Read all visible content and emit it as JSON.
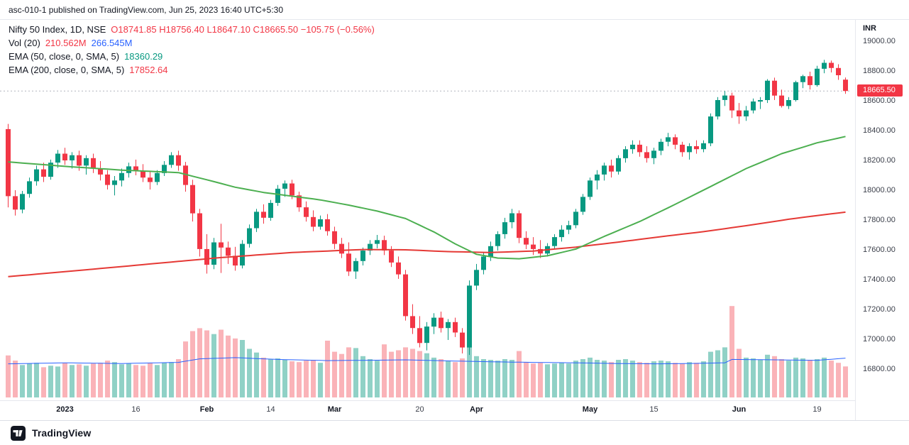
{
  "header": {
    "publish_text": "asc-010-1 published on TradingView.com, Jun 25, 2023 16:40 UTC+5:30"
  },
  "legend": {
    "symbol": "Nifty 50 Index, 1D, NSE",
    "ohlc_text": "O18741.85  H18756.40  L18647.10  C18665.50  −105.75 (−0.56%)",
    "vol_label": "Vol (20)",
    "vol_current": "210.562M",
    "vol_ma": "266.545M",
    "ema50_label": "EMA (50, close, 0, SMA, 5)",
    "ema50_value": "18360.29",
    "ema200_label": "EMA (200, close, 0, SMA, 5)",
    "ema200_value": "17852.64"
  },
  "price_axis": {
    "currency": "INR",
    "ticks": [
      "19000.00",
      "18800.00",
      "18600.00",
      "18400.00",
      "18200.00",
      "18000.00",
      "17800.00",
      "17600.00",
      "17400.00",
      "17200.00",
      "17000.00",
      "16800.00"
    ],
    "last_price_label": "18665.50"
  },
  "time_axis": {
    "ticks": [
      {
        "label": "2023",
        "index": 8,
        "major": true
      },
      {
        "label": "16",
        "index": 18,
        "major": false
      },
      {
        "label": "Feb",
        "index": 28,
        "major": true
      },
      {
        "label": "14",
        "index": 37,
        "major": false
      },
      {
        "label": "Mar",
        "index": 46,
        "major": true
      },
      {
        "label": "20",
        "index": 58,
        "major": false
      },
      {
        "label": "Apr",
        "index": 66,
        "major": true
      },
      {
        "label": "May",
        "index": 82,
        "major": true
      },
      {
        "label": "15",
        "index": 91,
        "major": false
      },
      {
        "label": "Jun",
        "index": 103,
        "major": true
      },
      {
        "label": "19",
        "index": 114,
        "major": false
      }
    ]
  },
  "footer": {
    "brand": "TradingView"
  },
  "chart_data": {
    "type": "candlestick",
    "title": "Nifty 50 Index, 1D, NSE",
    "subtitle": "Daily candles with Volume(20), EMA 50 and EMA 200 overlays",
    "y_axis": {
      "min": 16800,
      "max": 19000,
      "tick_step": 200,
      "currency": "INR"
    },
    "volume_axis_max": 650,
    "last_price": 18665.5,
    "last_change": -105.75,
    "last_change_pct": -0.56,
    "last_ohlc": {
      "o": 18741.85,
      "h": 18756.4,
      "l": 18647.1,
      "c": 18665.5
    },
    "ema50_last": 18360.29,
    "ema200_last": 17852.64,
    "vol_last_millions": 210.562,
    "vol_ma_last_millions": 266.545,
    "candles_format": [
      "open",
      "high",
      "low",
      "close",
      "volume_millions"
    ],
    "candles": [
      [
        18410,
        18445,
        17885,
        17960,
        285
      ],
      [
        17960,
        18000,
        17830,
        17870,
        250
      ],
      [
        17870,
        17995,
        17845,
        17975,
        220
      ],
      [
        17975,
        18085,
        17950,
        18060,
        230
      ],
      [
        18060,
        18165,
        18030,
        18140,
        235
      ],
      [
        18140,
        18185,
        18055,
        18090,
        205
      ],
      [
        18090,
        18205,
        18070,
        18185,
        215
      ],
      [
        18185,
        18270,
        18150,
        18245,
        210
      ],
      [
        18245,
        18285,
        18170,
        18200,
        235
      ],
      [
        18200,
        18255,
        18145,
        18235,
        220
      ],
      [
        18235,
        18265,
        18130,
        18165,
        225
      ],
      [
        18165,
        18235,
        18105,
        18215,
        215
      ],
      [
        18215,
        18245,
        18115,
        18145,
        230
      ],
      [
        18145,
        18195,
        18065,
        18105,
        235
      ],
      [
        18105,
        18135,
        18005,
        18035,
        250
      ],
      [
        18035,
        18095,
        17965,
        18065,
        240
      ],
      [
        18065,
        18145,
        18025,
        18115,
        225
      ],
      [
        18115,
        18185,
        18085,
        18160,
        230
      ],
      [
        18160,
        18205,
        18100,
        18130,
        220
      ],
      [
        18130,
        18175,
        18055,
        18085,
        215
      ],
      [
        18085,
        18125,
        18005,
        18055,
        235
      ],
      [
        18055,
        18135,
        18035,
        18115,
        220
      ],
      [
        18115,
        18195,
        18095,
        18170,
        235
      ],
      [
        18170,
        18255,
        18150,
        18235,
        240
      ],
      [
        18235,
        18265,
        18130,
        18165,
        260
      ],
      [
        18165,
        18190,
        17990,
        18035,
        380
      ],
      [
        18035,
        18070,
        17790,
        17845,
        450
      ],
      [
        17845,
        17875,
        17555,
        17605,
        470
      ],
      [
        17605,
        17705,
        17440,
        17500,
        455
      ],
      [
        17500,
        17680,
        17470,
        17650,
        430
      ],
      [
        17650,
        17775,
        17445,
        17615,
        460
      ],
      [
        17615,
        17655,
        17505,
        17560,
        420
      ],
      [
        17560,
        17620,
        17460,
        17495,
        400
      ],
      [
        17495,
        17665,
        17475,
        17640,
        390
      ],
      [
        17640,
        17770,
        17615,
        17745,
        330
      ],
      [
        17745,
        17875,
        17720,
        17855,
        305
      ],
      [
        17855,
        17905,
        17775,
        17815,
        270
      ],
      [
        17815,
        17935,
        17795,
        17915,
        260
      ],
      [
        17915,
        18035,
        17895,
        18010,
        265
      ],
      [
        18010,
        18065,
        17955,
        18045,
        255
      ],
      [
        18045,
        18070,
        17940,
        17965,
        245
      ],
      [
        17965,
        17990,
        17855,
        17885,
        240
      ],
      [
        17885,
        17925,
        17790,
        17820,
        250
      ],
      [
        17820,
        17865,
        17725,
        17755,
        255
      ],
      [
        17755,
        17830,
        17735,
        17805,
        235
      ],
      [
        17805,
        17840,
        17695,
        17725,
        385
      ],
      [
        17725,
        17755,
        17605,
        17640,
        310
      ],
      [
        17640,
        17680,
        17545,
        17575,
        295
      ],
      [
        17575,
        17650,
        17425,
        17455,
        340
      ],
      [
        17455,
        17545,
        17405,
        17525,
        335
      ],
      [
        17525,
        17615,
        17495,
        17595,
        280
      ],
      [
        17595,
        17665,
        17565,
        17640,
        260
      ],
      [
        17640,
        17700,
        17610,
        17665,
        250
      ],
      [
        17665,
        17695,
        17565,
        17595,
        360
      ],
      [
        17595,
        17625,
        17485,
        17515,
        310
      ],
      [
        17515,
        17555,
        17405,
        17435,
        320
      ],
      [
        17435,
        17465,
        17125,
        17155,
        340
      ],
      [
        17155,
        17235,
        17035,
        17075,
        330
      ],
      [
        17075,
        17155,
        16945,
        16975,
        315
      ],
      [
        16975,
        17115,
        16925,
        17085,
        300
      ],
      [
        17085,
        17175,
        17035,
        17145,
        270
      ],
      [
        17145,
        17185,
        17045,
        17075,
        260
      ],
      [
        17075,
        17135,
        16995,
        17115,
        250
      ],
      [
        17115,
        17145,
        17015,
        17045,
        240
      ],
      [
        17045,
        17075,
        16905,
        16945,
        265
      ],
      [
        16945,
        17395,
        16895,
        17360,
        340
      ],
      [
        17360,
        17505,
        17330,
        17465,
        280
      ],
      [
        17465,
        17585,
        17435,
        17555,
        260
      ],
      [
        17555,
        17655,
        17525,
        17625,
        255
      ],
      [
        17625,
        17725,
        17595,
        17705,
        250
      ],
      [
        17705,
        17815,
        17675,
        17785,
        260
      ],
      [
        17785,
        17875,
        17745,
        17845,
        255
      ],
      [
        17845,
        17865,
        17645,
        17680,
        315
      ],
      [
        17680,
        17725,
        17605,
        17635,
        240
      ],
      [
        17635,
        17685,
        17565,
        17605,
        230
      ],
      [
        17605,
        17665,
        17545,
        17575,
        235
      ],
      [
        17575,
        17645,
        17555,
        17625,
        225
      ],
      [
        17625,
        17705,
        17605,
        17685,
        230
      ],
      [
        17685,
        17765,
        17655,
        17735,
        235
      ],
      [
        17735,
        17795,
        17705,
        17765,
        230
      ],
      [
        17765,
        17875,
        17745,
        17855,
        250
      ],
      [
        17855,
        17975,
        17835,
        17955,
        260
      ],
      [
        17955,
        18085,
        17935,
        18065,
        270
      ],
      [
        18065,
        18135,
        18005,
        18105,
        255
      ],
      [
        18105,
        18185,
        18065,
        18165,
        250
      ],
      [
        18165,
        18205,
        18085,
        18125,
        240
      ],
      [
        18125,
        18235,
        18105,
        18215,
        255
      ],
      [
        18215,
        18295,
        18185,
        18275,
        260
      ],
      [
        18275,
        18335,
        18245,
        18305,
        250
      ],
      [
        18305,
        18335,
        18225,
        18255,
        240
      ],
      [
        18255,
        18295,
        18185,
        18215,
        235
      ],
      [
        18215,
        18285,
        18175,
        18265,
        245
      ],
      [
        18265,
        18345,
        18235,
        18325,
        250
      ],
      [
        18325,
        18385,
        18295,
        18355,
        245
      ],
      [
        18355,
        18375,
        18275,
        18305,
        235
      ],
      [
        18305,
        18325,
        18225,
        18255,
        230
      ],
      [
        18255,
        18315,
        18205,
        18295,
        240
      ],
      [
        18295,
        18335,
        18245,
        18275,
        235
      ],
      [
        18275,
        18335,
        18255,
        18315,
        245
      ],
      [
        18315,
        18515,
        18295,
        18495,
        310
      ],
      [
        18495,
        18625,
        18475,
        18605,
        320
      ],
      [
        18605,
        18665,
        18565,
        18635,
        340
      ],
      [
        18635,
        18655,
        18485,
        18535,
        620
      ],
      [
        18535,
        18585,
        18445,
        18495,
        330
      ],
      [
        18495,
        18565,
        18465,
        18535,
        270
      ],
      [
        18535,
        18615,
        18515,
        18595,
        265
      ],
      [
        18595,
        18625,
        18545,
        18605,
        255
      ],
      [
        18605,
        18745,
        18585,
        18735,
        290
      ],
      [
        18735,
        18755,
        18605,
        18635,
        280
      ],
      [
        18635,
        18675,
        18555,
        18565,
        260
      ],
      [
        18565,
        18625,
        18545,
        18605,
        250
      ],
      [
        18605,
        18735,
        18595,
        18725,
        270
      ],
      [
        18725,
        18775,
        18685,
        18765,
        265
      ],
      [
        18765,
        18795,
        18675,
        18705,
        255
      ],
      [
        18705,
        18835,
        18695,
        18815,
        260
      ],
      [
        18815,
        18875,
        18785,
        18855,
        270
      ],
      [
        18855,
        18870,
        18790,
        18820,
        250
      ],
      [
        18820,
        18845,
        18740,
        18771.25,
        235
      ],
      [
        18741.85,
        18756.4,
        18647.1,
        18665.5,
        210.562
      ]
    ],
    "ema50_keypoints": [
      [
        0,
        18190
      ],
      [
        8,
        18160
      ],
      [
        16,
        18135
      ],
      [
        24,
        18118
      ],
      [
        28,
        18070
      ],
      [
        32,
        18020
      ],
      [
        36,
        17985
      ],
      [
        40,
        17960
      ],
      [
        44,
        17935
      ],
      [
        48,
        17900
      ],
      [
        52,
        17860
      ],
      [
        56,
        17810
      ],
      [
        60,
        17720
      ],
      [
        63,
        17640
      ],
      [
        66,
        17570
      ],
      [
        69,
        17545
      ],
      [
        72,
        17540
      ],
      [
        76,
        17560
      ],
      [
        80,
        17605
      ],
      [
        84,
        17690
      ],
      [
        89,
        17790
      ],
      [
        94,
        17905
      ],
      [
        99,
        18025
      ],
      [
        104,
        18145
      ],
      [
        109,
        18245
      ],
      [
        114,
        18318
      ],
      [
        118,
        18360.29
      ]
    ],
    "ema200_keypoints": [
      [
        0,
        17420
      ],
      [
        10,
        17462
      ],
      [
        20,
        17505
      ],
      [
        30,
        17548
      ],
      [
        40,
        17582
      ],
      [
        50,
        17602
      ],
      [
        56,
        17600
      ],
      [
        62,
        17588
      ],
      [
        68,
        17582
      ],
      [
        74,
        17592
      ],
      [
        80,
        17618
      ],
      [
        86,
        17652
      ],
      [
        92,
        17688
      ],
      [
        98,
        17722
      ],
      [
        104,
        17762
      ],
      [
        110,
        17805
      ],
      [
        114,
        17830
      ],
      [
        118,
        17852.64
      ]
    ],
    "vol_ma_keypoints": [
      [
        0,
        228
      ],
      [
        8,
        235
      ],
      [
        16,
        230
      ],
      [
        24,
        238
      ],
      [
        27,
        262
      ],
      [
        32,
        270
      ],
      [
        38,
        258
      ],
      [
        45,
        250
      ],
      [
        50,
        252
      ],
      [
        56,
        255
      ],
      [
        62,
        248
      ],
      [
        68,
        242
      ],
      [
        74,
        238
      ],
      [
        80,
        235
      ],
      [
        86,
        230
      ],
      [
        92,
        228
      ],
      [
        98,
        232
      ],
      [
        101,
        235
      ],
      [
        102,
        258
      ],
      [
        108,
        255
      ],
      [
        114,
        252
      ],
      [
        118,
        266.545
      ]
    ],
    "colors": {
      "up": "#089981",
      "down": "#f23645",
      "vol_up": "rgba(8,153,129,0.45)",
      "vol_down": "rgba(242,54,69,0.38)",
      "ema50": "#4caf50",
      "ema200": "#e53935",
      "vol_ma": "#2962ff",
      "last_badge": "#f23645",
      "last_price_line": "#b2b5be"
    },
    "legend_position": "top-left",
    "grid": "off"
  }
}
